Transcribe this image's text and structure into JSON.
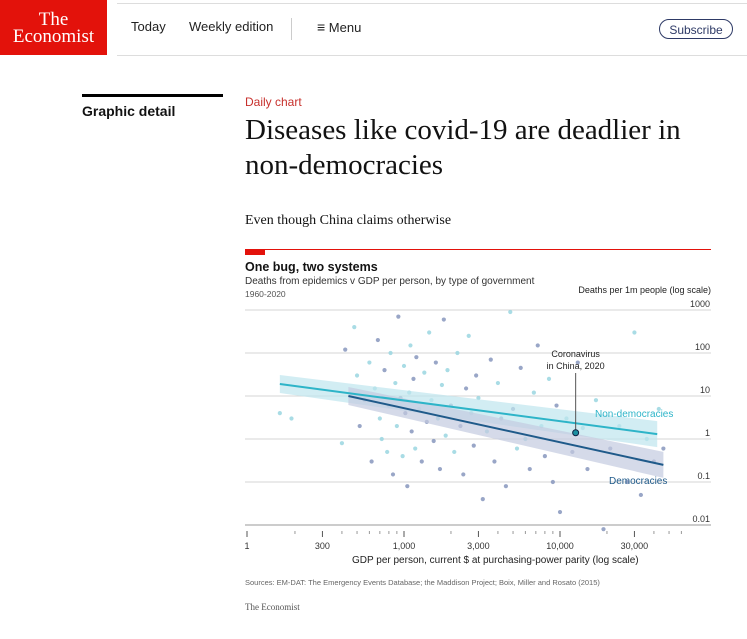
{
  "header": {
    "logo_line1": "The",
    "logo_line2": "Economist",
    "nav": [
      "Today",
      "Weekly edition"
    ],
    "menu": "Menu",
    "subscribe": "Subscribe"
  },
  "sidebar": {
    "section": "Graphic detail"
  },
  "article": {
    "kicker": "Daily chart",
    "headline": "Diseases like covid-19 are deadlier in non-democracies",
    "standfirst": "Even though China claims otherwise"
  },
  "chart_data": {
    "type": "scatter",
    "title": "One bug, two systems",
    "subtitle": "Deaths from epidemics v GDP per person, by type of government",
    "period": "1960-2020",
    "ylabel": "Deaths per 1m people (log scale)",
    "xlabel": "GDP per person, current $ at purchasing-power parity (log scale)",
    "yticks": [
      {
        "v": 1000,
        "l": "1000"
      },
      {
        "v": 100,
        "l": "100"
      },
      {
        "v": 10,
        "l": "10"
      },
      {
        "v": 1,
        "l": "1"
      },
      {
        "v": 0.1,
        "l": "0.1"
      },
      {
        "v": 0.01,
        "l": "0.01"
      }
    ],
    "xticks": [
      {
        "v": 300,
        "l": "300"
      },
      {
        "v": 1000,
        "l": "1,000"
      },
      {
        "v": 3000,
        "l": "3,000"
      },
      {
        "v": 10000,
        "l": "10,000"
      },
      {
        "v": 30000,
        "l": "30,000"
      }
    ],
    "x_break_label": "1",
    "ylim": [
      0.01,
      1000
    ],
    "xlim": [
      150,
      60000
    ],
    "colors": {
      "non_democracy": "#2db4c8",
      "non_democracy_pt": "#9ad6e0",
      "democracy": "#1f5a8a",
      "democracy_pt": "#8797bd",
      "band_nd": "#bfe6ee",
      "band_d": "#c3cadf",
      "annotation": "#1a8fa0"
    },
    "series": [
      {
        "name": "Non-democracies",
        "fit": [
          [
            160,
            19
          ],
          [
            42000,
            1.3
          ]
        ]
      },
      {
        "name": "Democracies",
        "fit": [
          [
            440,
            10
          ],
          [
            46000,
            0.25
          ]
        ]
      }
    ],
    "annotation": {
      "label_line1": "Coronavirus",
      "label_line2": "in China, 2020",
      "x": 12600,
      "y": 1.4
    },
    "points": [
      [
        160,
        4,
        0
      ],
      [
        190,
        3,
        0
      ],
      [
        400,
        0.8,
        0
      ],
      [
        420,
        120,
        1
      ],
      [
        480,
        400,
        0
      ],
      [
        500,
        30,
        0
      ],
      [
        520,
        2,
        1
      ],
      [
        560,
        8,
        1
      ],
      [
        600,
        60,
        0
      ],
      [
        620,
        0.3,
        1
      ],
      [
        650,
        15,
        0
      ],
      [
        680,
        200,
        1
      ],
      [
        700,
        3,
        0
      ],
      [
        720,
        1,
        0
      ],
      [
        750,
        40,
        1
      ],
      [
        780,
        0.5,
        0
      ],
      [
        800,
        6,
        1
      ],
      [
        820,
        100,
        0
      ],
      [
        850,
        0.15,
        1
      ],
      [
        880,
        20,
        0
      ],
      [
        900,
        2,
        0
      ],
      [
        920,
        700,
        1
      ],
      [
        950,
        9,
        1
      ],
      [
        980,
        0.4,
        0
      ],
      [
        1000,
        50,
        0
      ],
      [
        1020,
        4,
        1
      ],
      [
        1050,
        0.08,
        1
      ],
      [
        1080,
        12,
        0
      ],
      [
        1100,
        150,
        0
      ],
      [
        1120,
        1.5,
        1
      ],
      [
        1150,
        25,
        1
      ],
      [
        1180,
        0.6,
        0
      ],
      [
        1200,
        80,
        1
      ],
      [
        1250,
        5,
        0
      ],
      [
        1300,
        0.3,
        1
      ],
      [
        1350,
        35,
        0
      ],
      [
        1400,
        2.5,
        1
      ],
      [
        1450,
        300,
        0
      ],
      [
        1500,
        8,
        0
      ],
      [
        1550,
        0.9,
        1
      ],
      [
        1600,
        60,
        1
      ],
      [
        1650,
        3,
        0
      ],
      [
        1700,
        0.2,
        1
      ],
      [
        1750,
        18,
        0
      ],
      [
        1800,
        600,
        1
      ],
      [
        1850,
        1.2,
        0
      ],
      [
        1900,
        40,
        0
      ],
      [
        2000,
        6,
        1
      ],
      [
        2100,
        0.5,
        0
      ],
      [
        2200,
        100,
        0
      ],
      [
        2300,
        2,
        1
      ],
      [
        2400,
        0.15,
        1
      ],
      [
        2500,
        15,
        1
      ],
      [
        2600,
        250,
        0
      ],
      [
        2700,
        4,
        0
      ],
      [
        2800,
        0.7,
        1
      ],
      [
        2900,
        30,
        1
      ],
      [
        3000,
        9,
        0
      ],
      [
        3200,
        0.04,
        1
      ],
      [
        3400,
        1.5,
        0
      ],
      [
        3600,
        70,
        1
      ],
      [
        3800,
        0.3,
        1
      ],
      [
        4000,
        20,
        0
      ],
      [
        4200,
        3,
        1
      ],
      [
        4500,
        0.08,
        1
      ],
      [
        4800,
        900,
        0
      ],
      [
        5000,
        5,
        1
      ],
      [
        5300,
        0.6,
        0
      ],
      [
        5600,
        45,
        1
      ],
      [
        6000,
        1,
        0
      ],
      [
        6400,
        0.2,
        1
      ],
      [
        6800,
        12,
        0
      ],
      [
        7200,
        150,
        1
      ],
      [
        7600,
        2,
        0
      ],
      [
        8000,
        0.4,
        1
      ],
      [
        8500,
        25,
        0
      ],
      [
        9000,
        0.1,
        1
      ],
      [
        9500,
        6,
        1
      ],
      [
        10000,
        0.02,
        1
      ],
      [
        11000,
        3,
        0
      ],
      [
        12000,
        0.5,
        1
      ],
      [
        13000,
        60,
        1
      ],
      [
        14000,
        1.8,
        0
      ],
      [
        15000,
        0.2,
        1
      ],
      [
        17000,
        8,
        0
      ],
      [
        19000,
        0.008,
        1
      ],
      [
        21000,
        0.6,
        1
      ],
      [
        24000,
        2,
        0
      ],
      [
        27000,
        0.1,
        1
      ],
      [
        30000,
        300,
        0
      ],
      [
        33000,
        0.05,
        1
      ],
      [
        36000,
        1,
        0
      ],
      [
        40000,
        0.3,
        1
      ],
      [
        43000,
        5,
        0
      ],
      [
        46000,
        0.6,
        1
      ]
    ]
  },
  "footer": {
    "sources": "Sources: EM-DAT: The Emergency Events Database; the Maddison Project; Boix, Miller and Rosato (2015)",
    "brand": "The Economist"
  }
}
